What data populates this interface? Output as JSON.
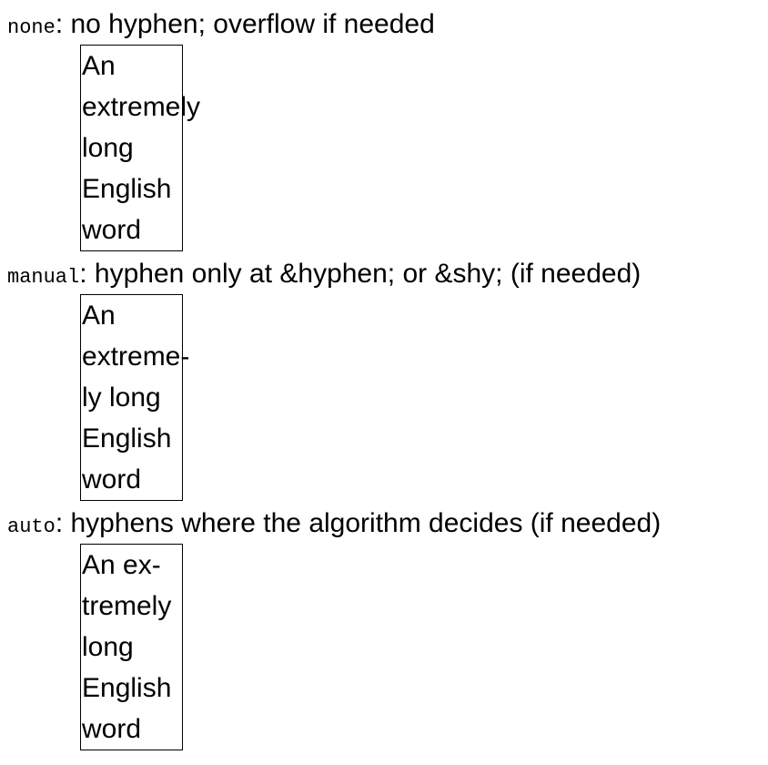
{
  "sections": [
    {
      "keyword": "none",
      "description": ": no hyphen; overflow if needed",
      "lines": [
        "An",
        "extremely",
        "long",
        "English",
        "word"
      ]
    },
    {
      "keyword": "manual",
      "description": ": hyphen only at &hyphen; or &shy; (if needed)",
      "lines": [
        "An",
        "extreme-",
        "ly long",
        "English",
        "word"
      ]
    },
    {
      "keyword": "auto",
      "description": ": hyphens where the algorithm decides (if needed)",
      "lines": [
        "An ex-",
        "tremely",
        "long",
        "English",
        "word"
      ]
    }
  ]
}
